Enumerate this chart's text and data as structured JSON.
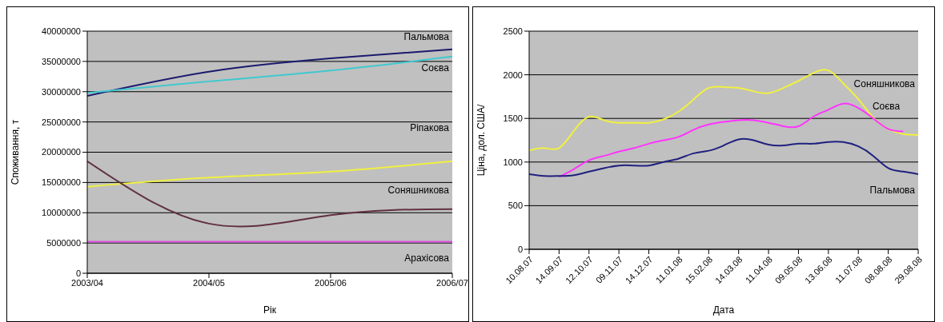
{
  "chart_data": [
    {
      "type": "line",
      "xlabel": "Рік",
      "ylabel": "Споживання, т",
      "categories": [
        "2003/04",
        "2004/05",
        "2005/06",
        "2006/07"
      ],
      "ylim": [
        0,
        40000000
      ],
      "yticks": [
        0,
        5000000,
        10000000,
        15000000,
        20000000,
        25000000,
        30000000,
        35000000,
        40000000
      ],
      "grid": "y",
      "series": [
        {
          "name": "Пальмова",
          "color": "#1a1a6e",
          "values": [
            29300000,
            33300000,
            35500000,
            37000000
          ]
        },
        {
          "name": "Соєва",
          "color": "#40c8d0",
          "values": [
            29800000,
            31700000,
            33500000,
            35800000
          ]
        },
        {
          "name": "Ріпакова",
          "color": "#f0f040",
          "values": [
            14300000,
            15800000,
            16800000,
            18500000
          ]
        },
        {
          "name": "Соняшникова",
          "color": "#603040",
          "values": [
            18500000,
            8200000,
            9600000,
            10600000
          ]
        },
        {
          "name": "Арахісова",
          "color": "#e050e0",
          "values": [
            5200000,
            5200000,
            5200000,
            5200000
          ]
        }
      ]
    },
    {
      "type": "line",
      "xlabel": "Дата",
      "ylabel": "Ціна, дол. США/",
      "categories": [
        "10.08.07",
        null,
        "14.09.07",
        null,
        "12.10.07",
        null,
        "09.11.07",
        null,
        "14.12.07",
        null,
        "11.01.08",
        null,
        "15.02.08",
        null,
        "14.03.08",
        null,
        "11.04.08",
        null,
        "09.05.08",
        null,
        "13.06.08",
        null,
        "11.07.08",
        null,
        "08.08.08",
        null,
        "29.08.08"
      ],
      "ylim": [
        0,
        2500
      ],
      "yticks": [
        0,
        500,
        1000,
        1500,
        2000,
        2500
      ],
      "grid": "y",
      "series": [
        {
          "name": "Соняшникова",
          "color": "#f0f040",
          "values": [
            1130,
            1160,
            1160,
            1360,
            1520,
            1480,
            1450,
            1450,
            1450,
            1490,
            1580,
            1720,
            1850,
            1860,
            1850,
            1810,
            1790,
            1850,
            1930,
            2020,
            2050,
            1900,
            1720,
            1510,
            1380,
            1320,
            1310
          ]
        },
        {
          "name": "Соєва",
          "color": "#ff33ff",
          "values": [
            null,
            null,
            830,
            920,
            1020,
            1070,
            1120,
            1160,
            1210,
            1250,
            1290,
            1370,
            1430,
            1460,
            1480,
            1480,
            1450,
            1410,
            1410,
            1520,
            1600,
            1670,
            1620,
            1500,
            1380,
            1350,
            null
          ]
        },
        {
          "name": "Пальмова",
          "color": "#202080",
          "values": [
            860,
            840,
            840,
            850,
            890,
            930,
            960,
            960,
            960,
            1000,
            1040,
            1100,
            1130,
            1190,
            1260,
            1250,
            1200,
            1190,
            1210,
            1210,
            1230,
            1230,
            1180,
            1070,
            930,
            890,
            860
          ]
        }
      ]
    }
  ]
}
